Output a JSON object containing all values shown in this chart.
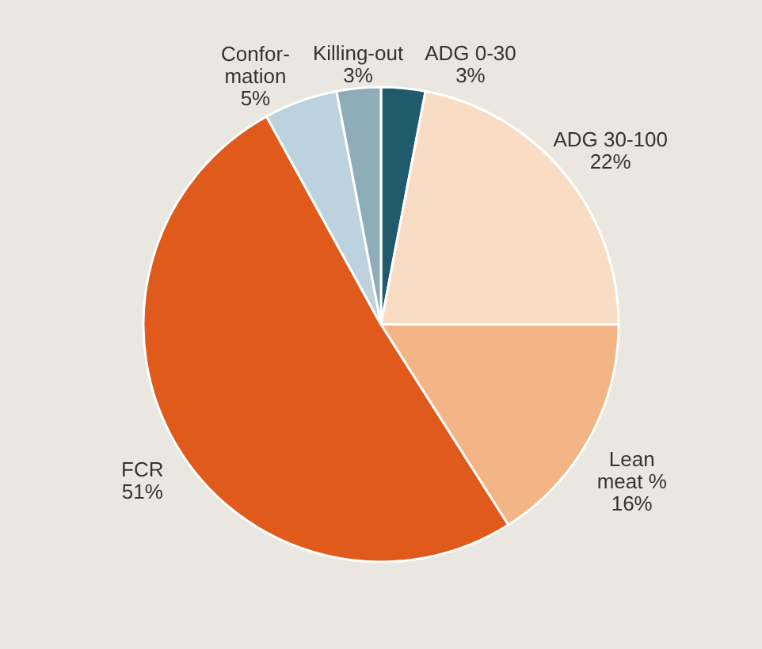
{
  "chart_data": {
    "type": "pie",
    "categories": [
      "ADG 0-30",
      "ADG 30-100",
      "Lean\nmeat %",
      "FCR",
      "Confor-\nmation",
      "Killing-out"
    ],
    "values": [
      3,
      22,
      16,
      51,
      5,
      3
    ],
    "value_labels": [
      "3%",
      "22%",
      "16%",
      "51%",
      "5%",
      "3%"
    ],
    "colors": [
      "#1f5b6b",
      "#f9dcc4",
      "#f3b486",
      "#e05a1c",
      "#bcd3df",
      "#8fadb8"
    ]
  }
}
